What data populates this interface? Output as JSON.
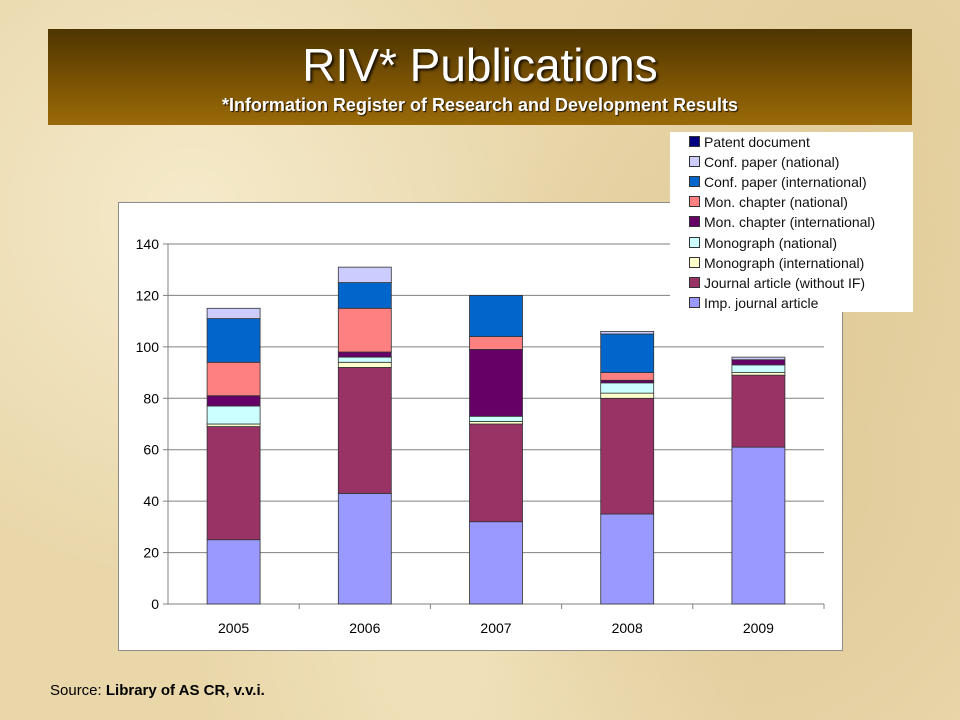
{
  "slide": {
    "title": "RIV* Publications",
    "subtitle": "*Information Register of Research and Development Results",
    "source_label": "Source:",
    "source_value": "Library of AS CR, v.v.i."
  },
  "chart_data": {
    "type": "bar",
    "stacked": true,
    "categories": [
      "2005",
      "2006",
      "2007",
      "2008",
      "2009"
    ],
    "ylim": [
      0,
      140
    ],
    "yticks": [
      0,
      20,
      40,
      60,
      80,
      100,
      120,
      140
    ],
    "grid": true,
    "legend_position": "top-right",
    "series": [
      {
        "name": "Imp. journal article",
        "color": "#9999ff",
        "values": [
          25,
          43,
          32,
          35,
          61
        ]
      },
      {
        "name": "Journal article (without IF)",
        "color": "#993366",
        "values": [
          44,
          49,
          38,
          45,
          28
        ]
      },
      {
        "name": "Monograph (international)",
        "color": "#ffffcc",
        "values": [
          1,
          2,
          1,
          2,
          1
        ]
      },
      {
        "name": "Monograph (national)",
        "color": "#ccffff",
        "values": [
          7,
          2,
          2,
          4,
          3
        ]
      },
      {
        "name": "Mon. chapter (international)",
        "color": "#660066",
        "values": [
          4,
          2,
          26,
          1,
          2
        ]
      },
      {
        "name": "Mon. chapter (national)",
        "color": "#ff8080",
        "values": [
          13,
          17,
          5,
          3,
          0
        ]
      },
      {
        "name": "Conf. paper (international)",
        "color": "#0066cc",
        "values": [
          17,
          10,
          16,
          15,
          0
        ]
      },
      {
        "name": "Conf. paper (national)",
        "color": "#ccccff",
        "values": [
          4,
          6,
          0,
          1,
          1
        ]
      },
      {
        "name": "Patent document",
        "color": "#000080",
        "values": [
          0,
          0,
          0,
          0,
          0
        ]
      }
    ]
  }
}
